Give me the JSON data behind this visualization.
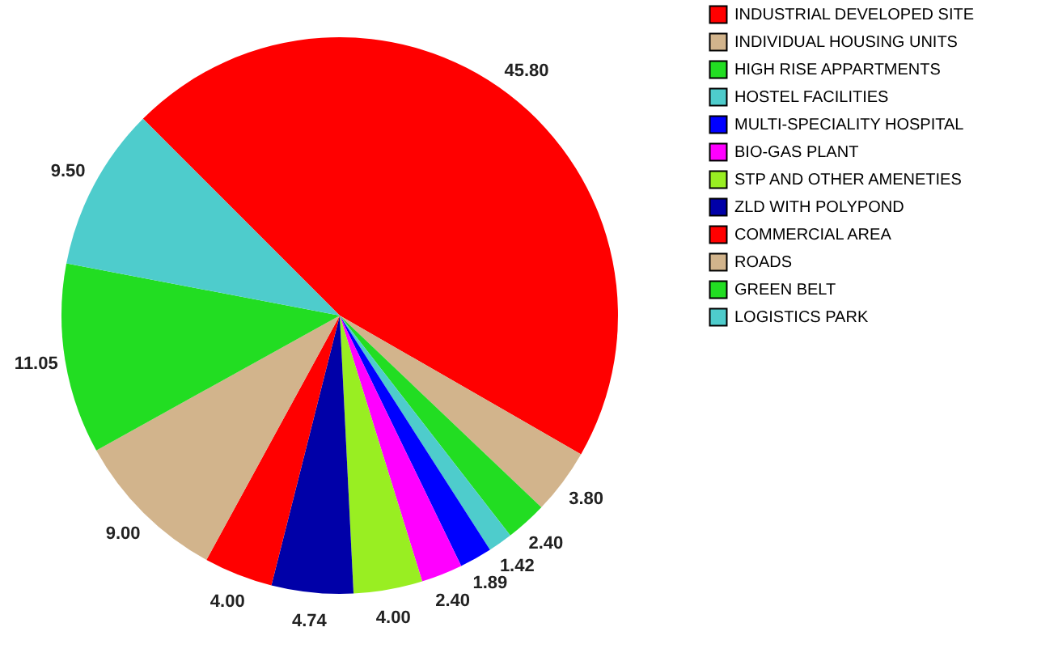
{
  "chart_data": {
    "type": "pie",
    "categories": [
      "INDUSTRIAL DEVELOPED SITE",
      "INDIVIDUAL HOUSING UNITS",
      "HIGH RISE APPARTMENTS",
      "HOSTEL FACILITIES",
      "MULTI-SPECIALITY HOSPITAL",
      "BIO-GAS PLANT",
      "STP AND OTHER AMENETIES",
      "ZLD WITH POLYPOND",
      "COMMERCIAL AREA",
      "ROADS",
      "GREEN BELT",
      "LOGISTICS PARK"
    ],
    "values": [
      45.8,
      3.8,
      2.4,
      1.42,
      1.89,
      2.4,
      4.0,
      4.74,
      4.0,
      9.0,
      11.05,
      9.5
    ],
    "value_labels": [
      "45.80",
      "3.80",
      "2.40",
      "1.42",
      "1.89",
      "2.40",
      "4.00",
      "4.74",
      "4.00",
      "9.00",
      "11.05",
      "9.50"
    ],
    "colors": [
      "#ff0000",
      "#d2b48c",
      "#22dd22",
      "#4ecccc",
      "#0000ff",
      "#ff00ff",
      "#99ee22",
      "#0000a8",
      "#ff0000",
      "#d2b48c",
      "#22dd22",
      "#4ecccc"
    ],
    "legend": "right"
  }
}
